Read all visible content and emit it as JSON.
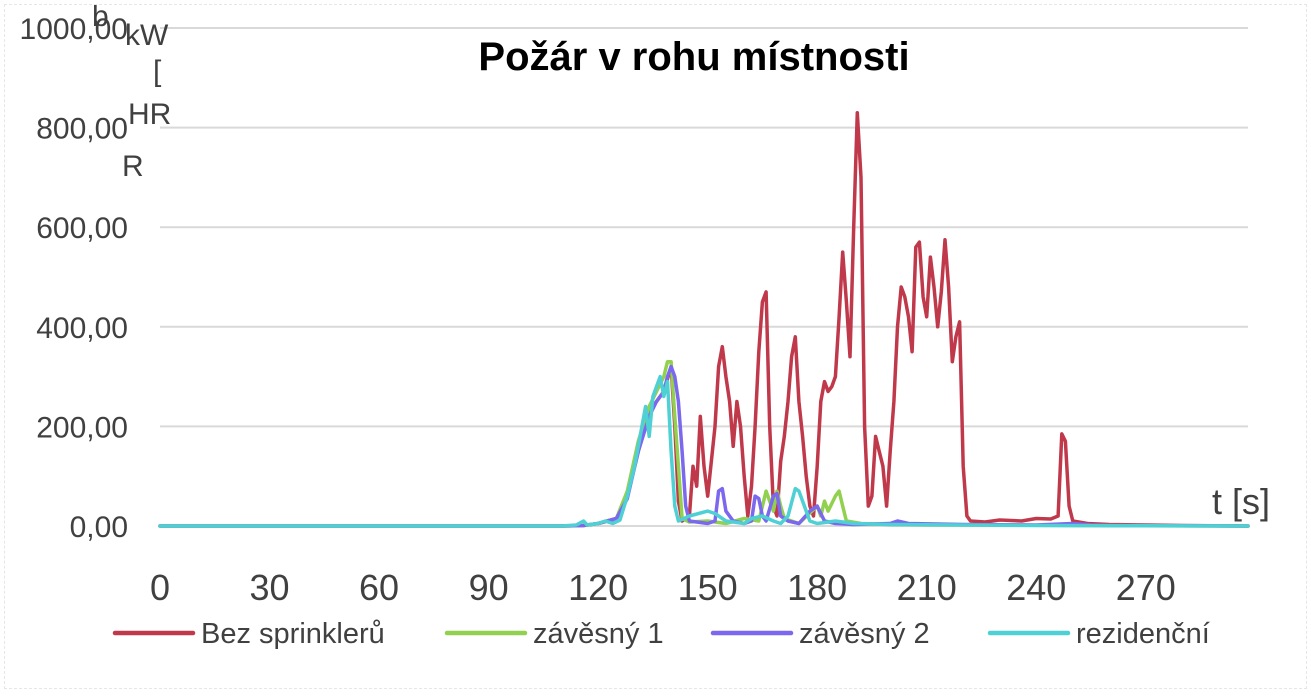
{
  "chart_data": {
    "type": "line",
    "title": "Požár v rohu místnosti",
    "xlabel": "t [s]",
    "ylabel_lines": [
      "kW",
      "[",
      "HR",
      "R"
    ],
    "ylabel_stub": "b",
    "y_ticks": [
      "0,00",
      "200,00",
      "400,00",
      "600,00",
      "800,00",
      "1000,00"
    ],
    "y_tick_values": [
      0,
      200,
      400,
      600,
      800,
      1000
    ],
    "x_ticks": [
      "0",
      "30",
      "60",
      "90",
      "120",
      "150",
      "180",
      "210",
      "240",
      "270"
    ],
    "x_tick_values": [
      0,
      30,
      60,
      90,
      120,
      150,
      180,
      210,
      240,
      270
    ],
    "xlim": [
      0,
      298
    ],
    "ylim": [
      0,
      1000
    ],
    "grid": "horizontal",
    "legend_position": "bottom",
    "series": [
      {
        "name": "Bez sprinklerů",
        "color": "#c0394b",
        "points": [
          [
            0,
            0
          ],
          [
            110,
            0
          ],
          [
            116,
            1
          ],
          [
            120,
            5
          ],
          [
            125,
            15
          ],
          [
            128,
            60
          ],
          [
            131,
            150
          ],
          [
            134,
            230
          ],
          [
            136,
            250
          ],
          [
            138,
            270
          ],
          [
            140,
            320
          ],
          [
            141,
            200
          ],
          [
            142,
            50
          ],
          [
            143,
            10
          ],
          [
            145,
            20
          ],
          [
            146,
            120
          ],
          [
            147,
            80
          ],
          [
            148,
            220
          ],
          [
            149,
            120
          ],
          [
            150,
            60
          ],
          [
            152,
            200
          ],
          [
            153,
            320
          ],
          [
            154,
            360
          ],
          [
            155,
            300
          ],
          [
            156,
            250
          ],
          [
            157,
            160
          ],
          [
            158,
            250
          ],
          [
            159,
            200
          ],
          [
            160,
            100
          ],
          [
            161,
            20
          ],
          [
            162,
            80
          ],
          [
            163,
            200
          ],
          [
            164,
            350
          ],
          [
            165,
            450
          ],
          [
            166,
            470
          ],
          [
            167,
            200
          ],
          [
            168,
            40
          ],
          [
            169,
            20
          ],
          [
            170,
            130
          ],
          [
            171,
            180
          ],
          [
            172,
            250
          ],
          [
            173,
            340
          ],
          [
            174,
            380
          ],
          [
            175,
            250
          ],
          [
            176,
            180
          ],
          [
            177,
            100
          ],
          [
            178,
            40
          ],
          [
            179,
            20
          ],
          [
            180,
            120
          ],
          [
            181,
            250
          ],
          [
            182,
            290
          ],
          [
            183,
            270
          ],
          [
            184,
            280
          ],
          [
            185,
            300
          ],
          [
            186,
            420
          ],
          [
            187,
            550
          ],
          [
            188,
            450
          ],
          [
            189,
            340
          ],
          [
            190,
            600
          ],
          [
            191,
            830
          ],
          [
            192,
            700
          ],
          [
            193,
            200
          ],
          [
            194,
            40
          ],
          [
            195,
            60
          ],
          [
            196,
            180
          ],
          [
            197,
            150
          ],
          [
            198,
            120
          ],
          [
            199,
            40
          ],
          [
            200,
            150
          ],
          [
            201,
            250
          ],
          [
            202,
            400
          ],
          [
            203,
            480
          ],
          [
            204,
            460
          ],
          [
            205,
            420
          ],
          [
            206,
            350
          ],
          [
            207,
            560
          ],
          [
            208,
            570
          ],
          [
            209,
            460
          ],
          [
            210,
            420
          ],
          [
            211,
            540
          ],
          [
            212,
            480
          ],
          [
            213,
            400
          ],
          [
            214,
            470
          ],
          [
            215,
            575
          ],
          [
            216,
            480
          ],
          [
            217,
            330
          ],
          [
            218,
            380
          ],
          [
            219,
            410
          ],
          [
            220,
            120
          ],
          [
            221,
            20
          ],
          [
            222,
            10
          ],
          [
            226,
            8
          ],
          [
            230,
            12
          ],
          [
            236,
            10
          ],
          [
            240,
            15
          ],
          [
            244,
            14
          ],
          [
            246,
            20
          ],
          [
            247,
            185
          ],
          [
            248,
            170
          ],
          [
            249,
            40
          ],
          [
            250,
            10
          ],
          [
            254,
            5
          ],
          [
            260,
            3
          ],
          [
            270,
            2
          ],
          [
            280,
            1
          ],
          [
            298,
            0
          ]
        ]
      },
      {
        "name": "závěsný 1",
        "color": "#92d050",
        "points": [
          [
            0,
            0
          ],
          [
            110,
            0
          ],
          [
            116,
            1
          ],
          [
            120,
            5
          ],
          [
            125,
            15
          ],
          [
            128,
            70
          ],
          [
            131,
            170
          ],
          [
            134,
            240
          ],
          [
            136,
            270
          ],
          [
            138,
            300
          ],
          [
            139,
            330
          ],
          [
            140,
            330
          ],
          [
            141,
            220
          ],
          [
            142,
            120
          ],
          [
            143,
            15
          ],
          [
            145,
            8
          ],
          [
            150,
            10
          ],
          [
            155,
            5
          ],
          [
            160,
            15
          ],
          [
            164,
            10
          ],
          [
            166,
            70
          ],
          [
            167,
            50
          ],
          [
            168,
            30
          ],
          [
            169,
            70
          ],
          [
            170,
            40
          ],
          [
            171,
            15
          ],
          [
            175,
            5
          ],
          [
            180,
            40
          ],
          [
            181,
            20
          ],
          [
            182,
            50
          ],
          [
            183,
            30
          ],
          [
            185,
            60
          ],
          [
            186,
            70
          ],
          [
            187,
            40
          ],
          [
            188,
            10
          ],
          [
            192,
            5
          ],
          [
            200,
            3
          ],
          [
            210,
            2
          ],
          [
            230,
            2
          ],
          [
            250,
            1
          ],
          [
            298,
            0
          ]
        ]
      },
      {
        "name": "závěsný 2",
        "color": "#7b68ee",
        "points": [
          [
            0,
            0
          ],
          [
            110,
            0
          ],
          [
            116,
            1
          ],
          [
            120,
            5
          ],
          [
            125,
            15
          ],
          [
            128,
            55
          ],
          [
            131,
            150
          ],
          [
            134,
            220
          ],
          [
            136,
            250
          ],
          [
            138,
            270
          ],
          [
            139,
            300
          ],
          [
            140,
            320
          ],
          [
            141,
            300
          ],
          [
            142,
            250
          ],
          [
            143,
            150
          ],
          [
            144,
            40
          ],
          [
            145,
            10
          ],
          [
            150,
            5
          ],
          [
            152,
            10
          ],
          [
            153,
            70
          ],
          [
            154,
            75
          ],
          [
            155,
            30
          ],
          [
            157,
            10
          ],
          [
            160,
            5
          ],
          [
            162,
            10
          ],
          [
            163,
            60
          ],
          [
            164,
            55
          ],
          [
            165,
            20
          ],
          [
            166,
            10
          ],
          [
            168,
            60
          ],
          [
            169,
            65
          ],
          [
            170,
            20
          ],
          [
            172,
            10
          ],
          [
            175,
            5
          ],
          [
            178,
            30
          ],
          [
            180,
            40
          ],
          [
            182,
            10
          ],
          [
            185,
            5
          ],
          [
            190,
            3
          ],
          [
            200,
            5
          ],
          [
            202,
            10
          ],
          [
            205,
            5
          ],
          [
            220,
            3
          ],
          [
            240,
            2
          ],
          [
            250,
            5
          ],
          [
            255,
            2
          ],
          [
            260,
            1
          ],
          [
            298,
            0
          ]
        ]
      },
      {
        "name": "rezidenční",
        "color": "#4ed0d4",
        "points": [
          [
            0,
            0
          ],
          [
            110,
            0
          ],
          [
            114,
            2
          ],
          [
            116,
            10
          ],
          [
            117,
            2
          ],
          [
            120,
            5
          ],
          [
            122,
            10
          ],
          [
            124,
            5
          ],
          [
            126,
            12
          ],
          [
            128,
            60
          ],
          [
            130,
            120
          ],
          [
            131,
            160
          ],
          [
            132,
            200
          ],
          [
            133,
            240
          ],
          [
            134,
            180
          ],
          [
            135,
            260
          ],
          [
            136,
            280
          ],
          [
            137,
            300
          ],
          [
            138,
            260
          ],
          [
            139,
            290
          ],
          [
            140,
            150
          ],
          [
            141,
            40
          ],
          [
            142,
            10
          ],
          [
            145,
            20
          ],
          [
            150,
            30
          ],
          [
            152,
            25
          ],
          [
            155,
            10
          ],
          [
            160,
            5
          ],
          [
            162,
            15
          ],
          [
            165,
            20
          ],
          [
            168,
            10
          ],
          [
            170,
            5
          ],
          [
            172,
            20
          ],
          [
            174,
            75
          ],
          [
            175,
            70
          ],
          [
            176,
            50
          ],
          [
            177,
            30
          ],
          [
            178,
            10
          ],
          [
            180,
            5
          ],
          [
            185,
            10
          ],
          [
            190,
            5
          ],
          [
            200,
            3
          ],
          [
            220,
            2
          ],
          [
            240,
            1
          ],
          [
            298,
            0
          ]
        ]
      }
    ]
  }
}
